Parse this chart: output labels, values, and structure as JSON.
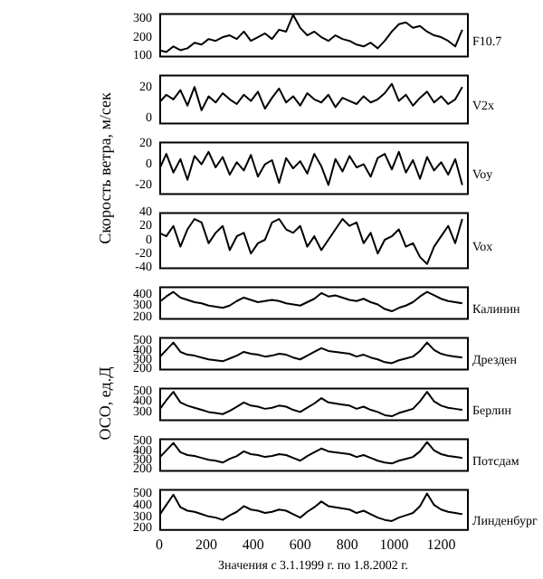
{
  "chart_data": [
    {
      "type": "line",
      "annotations": [
        "F10.7"
      ],
      "color": "#000000",
      "xlim": [
        0,
        1310
      ],
      "xticks": [
        0,
        200,
        400,
        600,
        800,
        1000,
        1200
      ],
      "ylim": [
        100,
        330
      ],
      "yticks": [
        100,
        200,
        300
      ],
      "tick_labels": "y",
      "x": [
        0,
        30,
        60,
        90,
        120,
        150,
        180,
        210,
        240,
        270,
        300,
        330,
        360,
        390,
        420,
        450,
        480,
        510,
        540,
        570,
        600,
        630,
        660,
        690,
        720,
        750,
        780,
        810,
        840,
        870,
        900,
        930,
        960,
        990,
        1020,
        1050,
        1080,
        1110,
        1140,
        1170,
        1200,
        1230,
        1260,
        1290
      ],
      "values": [
        130,
        120,
        150,
        130,
        140,
        170,
        160,
        190,
        180,
        200,
        210,
        190,
        230,
        180,
        200,
        220,
        190,
        240,
        230,
        320,
        250,
        210,
        230,
        200,
        180,
        210,
        190,
        180,
        160,
        150,
        170,
        140,
        180,
        230,
        270,
        280,
        250,
        260,
        230,
        210,
        200,
        180,
        150,
        240
      ]
    },
    {
      "type": "line",
      "annotations": [
        "V2x"
      ],
      "color": "#000000",
      "xlim": [
        0,
        1310
      ],
      "xticks": [
        0,
        200,
        400,
        600,
        800,
        1000,
        1200
      ],
      "ylim": [
        -3,
        28
      ],
      "yticks": [
        0,
        20
      ],
      "tick_labels": "y",
      "x": [
        0,
        30,
        60,
        90,
        120,
        150,
        180,
        210,
        240,
        270,
        300,
        330,
        360,
        390,
        420,
        450,
        480,
        510,
        540,
        570,
        600,
        630,
        660,
        690,
        720,
        750,
        780,
        810,
        840,
        870,
        900,
        930,
        960,
        990,
        1020,
        1050,
        1080,
        1110,
        1140,
        1170,
        1200,
        1230,
        1260,
        1290
      ],
      "values": [
        10,
        15,
        12,
        18,
        8,
        20,
        5,
        14,
        10,
        16,
        12,
        9,
        15,
        11,
        17,
        6,
        13,
        19,
        10,
        14,
        8,
        16,
        12,
        10,
        15,
        7,
        13,
        11,
        9,
        14,
        10,
        12,
        16,
        22,
        11,
        15,
        8,
        13,
        17,
        10,
        14,
        9,
        12,
        20
      ]
    },
    {
      "type": "line",
      "annotations": [
        "Voy"
      ],
      "ylabel": "Скорость ветра, м/сек",
      "color": "#000000",
      "xlim": [
        0,
        1310
      ],
      "xticks": [
        0,
        200,
        400,
        600,
        800,
        1000,
        1200
      ],
      "ylim": [
        -28,
        22
      ],
      "yticks": [
        -20,
        0,
        20
      ],
      "tick_labels": "y",
      "x": [
        0,
        30,
        60,
        90,
        120,
        150,
        180,
        210,
        240,
        270,
        300,
        330,
        360,
        390,
        420,
        450,
        480,
        510,
        540,
        570,
        600,
        630,
        660,
        690,
        720,
        750,
        780,
        810,
        840,
        870,
        900,
        930,
        960,
        990,
        1020,
        1050,
        1080,
        1110,
        1140,
        1170,
        1200,
        1230,
        1260,
        1290
      ],
      "values": [
        -5,
        10,
        -8,
        5,
        -15,
        8,
        0,
        12,
        -3,
        7,
        -10,
        2,
        -6,
        9,
        -12,
        0,
        4,
        -18,
        6,
        -4,
        3,
        -9,
        10,
        -2,
        -20,
        5,
        -7,
        8,
        -3,
        0,
        -12,
        6,
        10,
        -5,
        12,
        -8,
        4,
        -14,
        7,
        -6,
        2,
        -10,
        5,
        -20
      ]
    },
    {
      "type": "line",
      "annotations": [
        "Vox"
      ],
      "color": "#000000",
      "xlim": [
        0,
        1310
      ],
      "xticks": [
        0,
        200,
        400,
        600,
        800,
        1000,
        1200
      ],
      "ylim": [
        -40,
        40
      ],
      "yticks": [
        -40,
        -20,
        0,
        20,
        40
      ],
      "tick_labels": "y",
      "x": [
        0,
        30,
        60,
        90,
        120,
        150,
        180,
        210,
        240,
        270,
        300,
        330,
        360,
        390,
        420,
        450,
        480,
        510,
        540,
        570,
        600,
        630,
        660,
        690,
        720,
        750,
        780,
        810,
        840,
        870,
        900,
        930,
        960,
        990,
        1020,
        1050,
        1080,
        1110,
        1140,
        1170,
        1200,
        1230,
        1260,
        1290
      ],
      "values": [
        10,
        5,
        20,
        -10,
        15,
        30,
        25,
        -5,
        10,
        20,
        -15,
        5,
        10,
        -20,
        -5,
        0,
        25,
        30,
        15,
        10,
        20,
        -10,
        5,
        -15,
        0,
        15,
        30,
        20,
        25,
        -5,
        10,
        -20,
        0,
        5,
        15,
        -10,
        -5,
        -25,
        -35,
        -10,
        5,
        20,
        -5,
        30
      ]
    },
    {
      "type": "line",
      "annotations": [
        "Калинин"
      ],
      "color": "#000000",
      "xlim": [
        0,
        1310
      ],
      "xticks": [
        0,
        200,
        400,
        600,
        800,
        1000,
        1200
      ],
      "ylim": [
        190,
        470
      ],
      "yticks": [
        200,
        300,
        400
      ],
      "tick_labels": "y",
      "x": [
        0,
        30,
        60,
        90,
        120,
        150,
        180,
        210,
        240,
        270,
        300,
        330,
        360,
        390,
        420,
        450,
        480,
        510,
        540,
        570,
        600,
        630,
        660,
        690,
        720,
        750,
        780,
        810,
        840,
        870,
        900,
        930,
        960,
        990,
        1020,
        1050,
        1080,
        1110,
        1140,
        1170,
        1200,
        1230,
        1260,
        1290
      ],
      "values": [
        330,
        380,
        420,
        370,
        350,
        330,
        320,
        300,
        290,
        280,
        300,
        340,
        370,
        350,
        330,
        340,
        350,
        340,
        320,
        310,
        300,
        330,
        360,
        410,
        380,
        390,
        370,
        350,
        340,
        360,
        330,
        310,
        270,
        250,
        280,
        300,
        330,
        380,
        420,
        390,
        360,
        340,
        330,
        320
      ]
    },
    {
      "type": "line",
      "annotations": [
        "Дрезден"
      ],
      "color": "#000000",
      "xlim": [
        0,
        1310
      ],
      "xticks": [
        0,
        200,
        400,
        600,
        800,
        1000,
        1200
      ],
      "ylim": [
        200,
        540
      ],
      "yticks": [
        200,
        300,
        400,
        500
      ],
      "tick_labels": "y",
      "x": [
        0,
        30,
        60,
        90,
        120,
        150,
        180,
        210,
        240,
        270,
        300,
        330,
        360,
        390,
        420,
        450,
        480,
        510,
        540,
        570,
        600,
        630,
        660,
        690,
        720,
        750,
        780,
        810,
        840,
        870,
        900,
        930,
        960,
        990,
        1020,
        1050,
        1080,
        1110,
        1140,
        1170,
        1200,
        1230,
        1260,
        1290
      ],
      "values": [
        320,
        400,
        480,
        380,
        350,
        340,
        320,
        300,
        290,
        280,
        310,
        340,
        380,
        360,
        350,
        330,
        340,
        360,
        350,
        320,
        300,
        340,
        380,
        420,
        390,
        380,
        370,
        360,
        330,
        350,
        320,
        300,
        270,
        260,
        290,
        310,
        330,
        390,
        480,
        400,
        360,
        340,
        330,
        320
      ]
    },
    {
      "type": "line",
      "annotations": [
        "Берлин"
      ],
      "ylabel": "ОСО, ед.Д",
      "color": "#000000",
      "xlim": [
        0,
        1310
      ],
      "xticks": [
        0,
        200,
        400,
        600,
        800,
        1000,
        1200
      ],
      "ylim": [
        230,
        530
      ],
      "yticks": [
        300,
        400,
        500
      ],
      "tick_labels": "y",
      "x": [
        0,
        30,
        60,
        90,
        120,
        150,
        180,
        210,
        240,
        270,
        300,
        330,
        360,
        390,
        420,
        450,
        480,
        510,
        540,
        570,
        600,
        630,
        660,
        690,
        720,
        750,
        780,
        810,
        840,
        870,
        900,
        930,
        960,
        990,
        1020,
        1050,
        1080,
        1110,
        1140,
        1170,
        1200,
        1230,
        1260,
        1290
      ],
      "values": [
        320,
        410,
        490,
        390,
        360,
        340,
        320,
        300,
        290,
        280,
        310,
        350,
        390,
        360,
        350,
        330,
        340,
        360,
        350,
        320,
        300,
        340,
        380,
        430,
        390,
        380,
        370,
        360,
        330,
        350,
        320,
        300,
        270,
        260,
        290,
        310,
        330,
        400,
        490,
        400,
        360,
        340,
        330,
        320
      ]
    },
    {
      "type": "line",
      "annotations": [
        "Потсдам"
      ],
      "color": "#000000",
      "xlim": [
        0,
        1310
      ],
      "xticks": [
        0,
        200,
        400,
        600,
        800,
        1000,
        1200
      ],
      "ylim": [
        190,
        530
      ],
      "yticks": [
        200,
        300,
        400,
        500
      ],
      "tick_labels": "y",
      "x": [
        0,
        30,
        60,
        90,
        120,
        150,
        180,
        210,
        240,
        270,
        300,
        330,
        360,
        390,
        420,
        450,
        480,
        510,
        540,
        570,
        600,
        630,
        660,
        690,
        720,
        750,
        780,
        810,
        840,
        870,
        900,
        930,
        960,
        990,
        1020,
        1050,
        1080,
        1110,
        1140,
        1170,
        1200,
        1230,
        1260,
        1290
      ],
      "values": [
        320,
        400,
        480,
        380,
        350,
        340,
        320,
        300,
        290,
        270,
        310,
        340,
        390,
        360,
        350,
        330,
        340,
        360,
        350,
        320,
        290,
        340,
        380,
        420,
        390,
        380,
        370,
        360,
        330,
        350,
        320,
        290,
        270,
        260,
        290,
        310,
        330,
        390,
        490,
        400,
        360,
        340,
        330,
        320
      ]
    },
    {
      "type": "line",
      "annotations": [
        "Линденбург"
      ],
      "xlabel": "Значения с 3.1.1999 г. по 1.8.2002 г.",
      "color": "#000000",
      "xlim": [
        0,
        1310
      ],
      "xticks": [
        0,
        200,
        400,
        600,
        800,
        1000,
        1200
      ],
      "ylim": [
        190,
        540
      ],
      "yticks": [
        200,
        300,
        400,
        500
      ],
      "x": [
        0,
        30,
        60,
        90,
        120,
        150,
        180,
        210,
        240,
        270,
        300,
        330,
        360,
        390,
        420,
        450,
        480,
        510,
        540,
        570,
        600,
        630,
        660,
        690,
        720,
        750,
        780,
        810,
        840,
        870,
        900,
        930,
        960,
        990,
        1020,
        1050,
        1080,
        1110,
        1140,
        1170,
        1200,
        1230,
        1260,
        1290
      ],
      "values": [
        310,
        400,
        490,
        380,
        350,
        340,
        320,
        300,
        290,
        270,
        310,
        340,
        390,
        360,
        350,
        330,
        340,
        360,
        350,
        320,
        290,
        340,
        380,
        430,
        390,
        380,
        370,
        360,
        330,
        350,
        320,
        290,
        270,
        260,
        290,
        310,
        330,
        390,
        500,
        400,
        360,
        340,
        330,
        320
      ]
    }
  ]
}
